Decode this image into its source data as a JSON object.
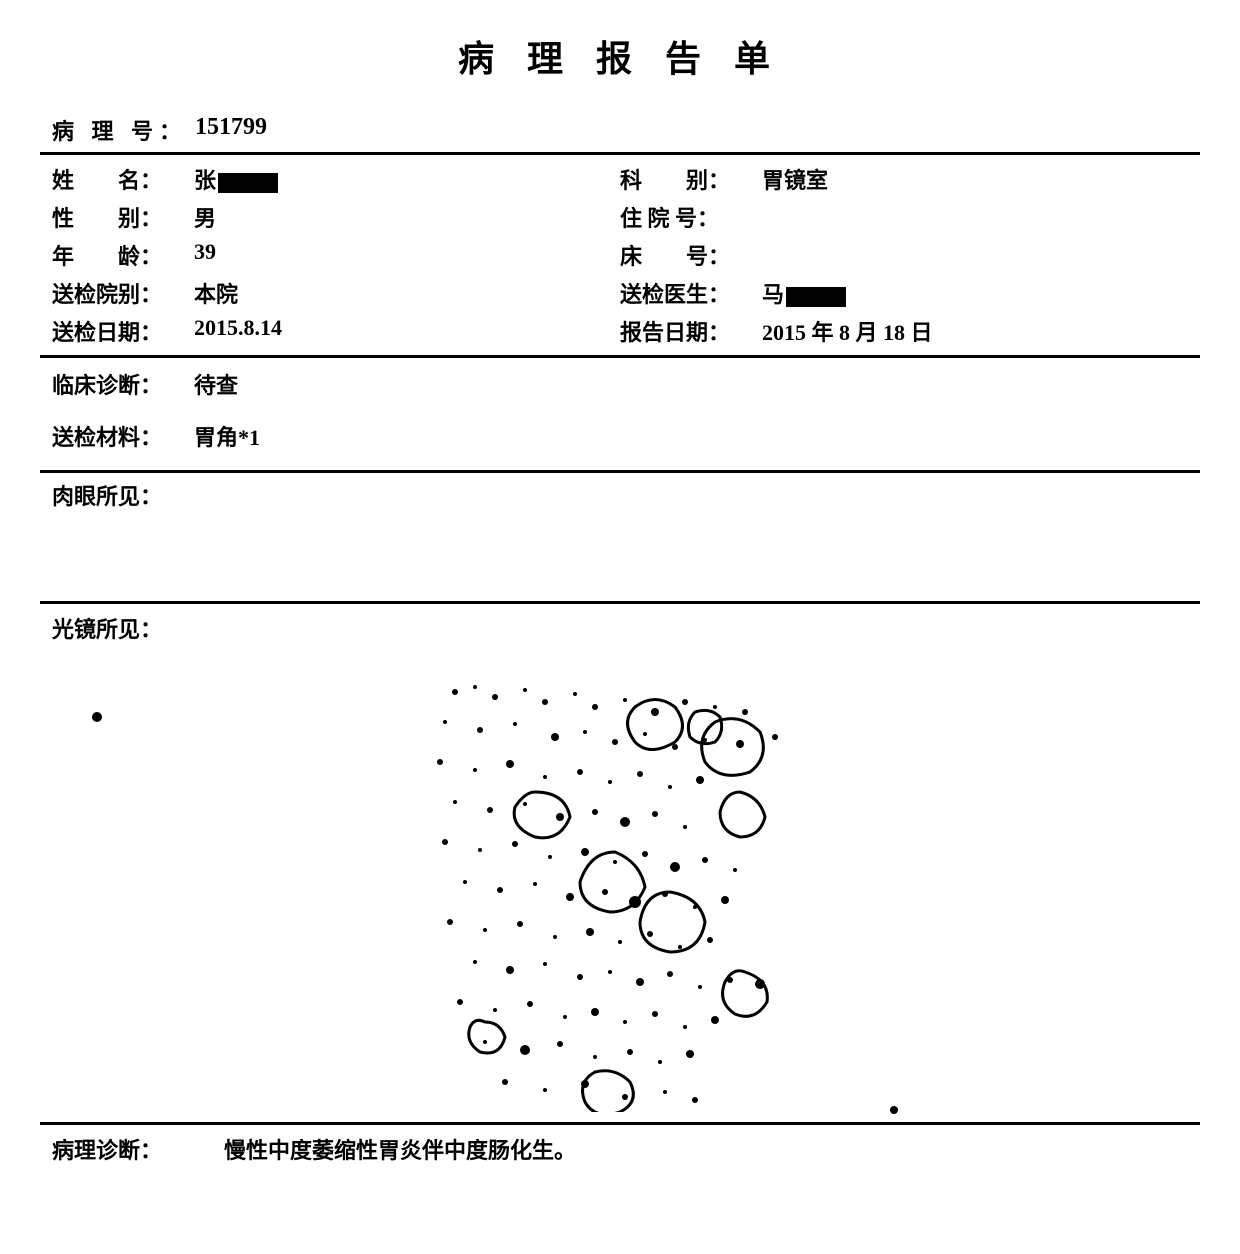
{
  "title": "病 理 报 告 单",
  "pathology_no": {
    "label": "病 理 号：",
    "value": "151799"
  },
  "info": {
    "name": {
      "label": "姓  名：",
      "value_prefix": "张",
      "redacted": true
    },
    "dept": {
      "label": "科  别：",
      "value": "胃镜室"
    },
    "gender": {
      "label": "性  别：",
      "value": "男"
    },
    "inpatient": {
      "label": "住 院 号：",
      "value": ""
    },
    "age": {
      "label": "年  龄：",
      "value": "39"
    },
    "bed": {
      "label": "床  号：",
      "value": ""
    },
    "hospital": {
      "label": "送检院别：",
      "value": "本院"
    },
    "doctor": {
      "label": "送检医生：",
      "value_prefix": "马",
      "redacted": true
    },
    "send_date": {
      "label": "送检日期：",
      "value": "2015.8.14"
    },
    "report_date": {
      "label": "报告日期：",
      "value": "2015 年 8 月 18 日"
    }
  },
  "clinical": {
    "diagnosis": {
      "label": "临床诊断：",
      "value": "待查"
    },
    "material": {
      "label": "送检材料：",
      "value": "胃角*1"
    }
  },
  "gross": {
    "label": "肉眼所见："
  },
  "micro": {
    "label": "光镜所见："
  },
  "pathology_diagnosis": {
    "label": "病理诊断：",
    "value": "慢性中度萎缩性胃炎伴中度肠化生。"
  },
  "micro_svg": {
    "bg": "#ffffff",
    "stroke": "#000000",
    "dots": [
      [
        70,
        40,
        3
      ],
      [
        90,
        35,
        2
      ],
      [
        110,
        45,
        3
      ],
      [
        140,
        38,
        2
      ],
      [
        160,
        50,
        3
      ],
      [
        190,
        42,
        2
      ],
      [
        210,
        55,
        3
      ],
      [
        240,
        48,
        2
      ],
      [
        270,
        60,
        4
      ],
      [
        300,
        50,
        3
      ],
      [
        330,
        55,
        2
      ],
      [
        360,
        60,
        3
      ],
      [
        60,
        70,
        2
      ],
      [
        95,
        78,
        3
      ],
      [
        130,
        72,
        2
      ],
      [
        170,
        85,
        4
      ],
      [
        200,
        80,
        2
      ],
      [
        230,
        90,
        3
      ],
      [
        260,
        82,
        2
      ],
      [
        290,
        95,
        3
      ],
      [
        320,
        88,
        2
      ],
      [
        355,
        92,
        4
      ],
      [
        390,
        85,
        3
      ],
      [
        55,
        110,
        3
      ],
      [
        90,
        118,
        2
      ],
      [
        125,
        112,
        4
      ],
      [
        160,
        125,
        2
      ],
      [
        195,
        120,
        3
      ],
      [
        225,
        130,
        2
      ],
      [
        255,
        122,
        3
      ],
      [
        285,
        135,
        2
      ],
      [
        315,
        128,
        4
      ],
      [
        70,
        150,
        2
      ],
      [
        105,
        158,
        3
      ],
      [
        140,
        152,
        2
      ],
      [
        175,
        165,
        4
      ],
      [
        210,
        160,
        3
      ],
      [
        240,
        170,
        5
      ],
      [
        270,
        162,
        3
      ],
      [
        300,
        175,
        2
      ],
      [
        60,
        190,
        3
      ],
      [
        95,
        198,
        2
      ],
      [
        130,
        192,
        3
      ],
      [
        165,
        205,
        2
      ],
      [
        200,
        200,
        4
      ],
      [
        230,
        210,
        2
      ],
      [
        260,
        202,
        3
      ],
      [
        290,
        215,
        5
      ],
      [
        320,
        208,
        3
      ],
      [
        350,
        218,
        2
      ],
      [
        80,
        230,
        2
      ],
      [
        115,
        238,
        3
      ],
      [
        150,
        232,
        2
      ],
      [
        185,
        245,
        4
      ],
      [
        220,
        240,
        3
      ],
      [
        250,
        250,
        6
      ],
      [
        280,
        242,
        3
      ],
      [
        310,
        255,
        2
      ],
      [
        340,
        248,
        4
      ],
      [
        65,
        270,
        3
      ],
      [
        100,
        278,
        2
      ],
      [
        135,
        272,
        3
      ],
      [
        170,
        285,
        2
      ],
      [
        205,
        280,
        4
      ],
      [
        235,
        290,
        2
      ],
      [
        265,
        282,
        3
      ],
      [
        295,
        295,
        2
      ],
      [
        325,
        288,
        3
      ],
      [
        90,
        310,
        2
      ],
      [
        125,
        318,
        4
      ],
      [
        160,
        312,
        2
      ],
      [
        195,
        325,
        3
      ],
      [
        225,
        320,
        2
      ],
      [
        255,
        330,
        4
      ],
      [
        285,
        322,
        3
      ],
      [
        315,
        335,
        2
      ],
      [
        345,
        328,
        3
      ],
      [
        375,
        332,
        5
      ],
      [
        75,
        350,
        3
      ],
      [
        110,
        358,
        2
      ],
      [
        145,
        352,
        3
      ],
      [
        180,
        365,
        2
      ],
      [
        210,
        360,
        4
      ],
      [
        240,
        370,
        2
      ],
      [
        270,
        362,
        3
      ],
      [
        300,
        375,
        2
      ],
      [
        330,
        368,
        4
      ],
      [
        100,
        390,
        2
      ],
      [
        140,
        398,
        5
      ],
      [
        175,
        392,
        3
      ],
      [
        210,
        405,
        2
      ],
      [
        245,
        400,
        3
      ],
      [
        275,
        410,
        2
      ],
      [
        305,
        402,
        4
      ],
      [
        120,
        430,
        3
      ],
      [
        160,
        438,
        2
      ],
      [
        200,
        432,
        4
      ],
      [
        240,
        445,
        3
      ],
      [
        280,
        440,
        2
      ],
      [
        310,
        448,
        3
      ]
    ],
    "blobs": [
      "M250,55 q20,-15 40,0 q15,20 0,35 q-25,15 -40,0 q-15,-20 0,-35 z",
      "M330,70 q25,-10 45,10 q10,25 -10,40 q-30,10 -45,-10 q-10,-25 10,-40 z",
      "M310,60 q15,-5 25,5 q5,15 -5,25 q-15,5 -25,-5 q-5,-15 5,-25 z",
      "M355,140 q20,5 25,25 q-5,20 -25,20 q-20,-5 -20,-25 q5,-20 20,-20 z",
      "M150,140 q30,0 35,25 q-10,25 -35,20 q-25,-10 -20,-30 q10,-15 20,-15 z",
      "M230,200 q25,10 30,35 q-10,25 -35,25 q-30,-5 -30,-30 q10,-30 35,-30 z",
      "M285,240 q30,5 35,30 q-5,30 -35,30 q-30,-5 -30,-30 q5,-30 30,-30 z",
      "M100,370 q15,0 20,15 q-5,20 -25,15 q-15,-10 -10,-25 q5,-10 15,-5 z",
      "M360,320 q25,8 22,30 q-12,20 -32,12 q-18,-12 -10,-32 q8,-15 20,-10 z",
      "M210,420 q20,-5 35,10 q10,20 -10,30 q-25,8 -35,-10 q-8,-20 10,-30 z"
    ]
  }
}
